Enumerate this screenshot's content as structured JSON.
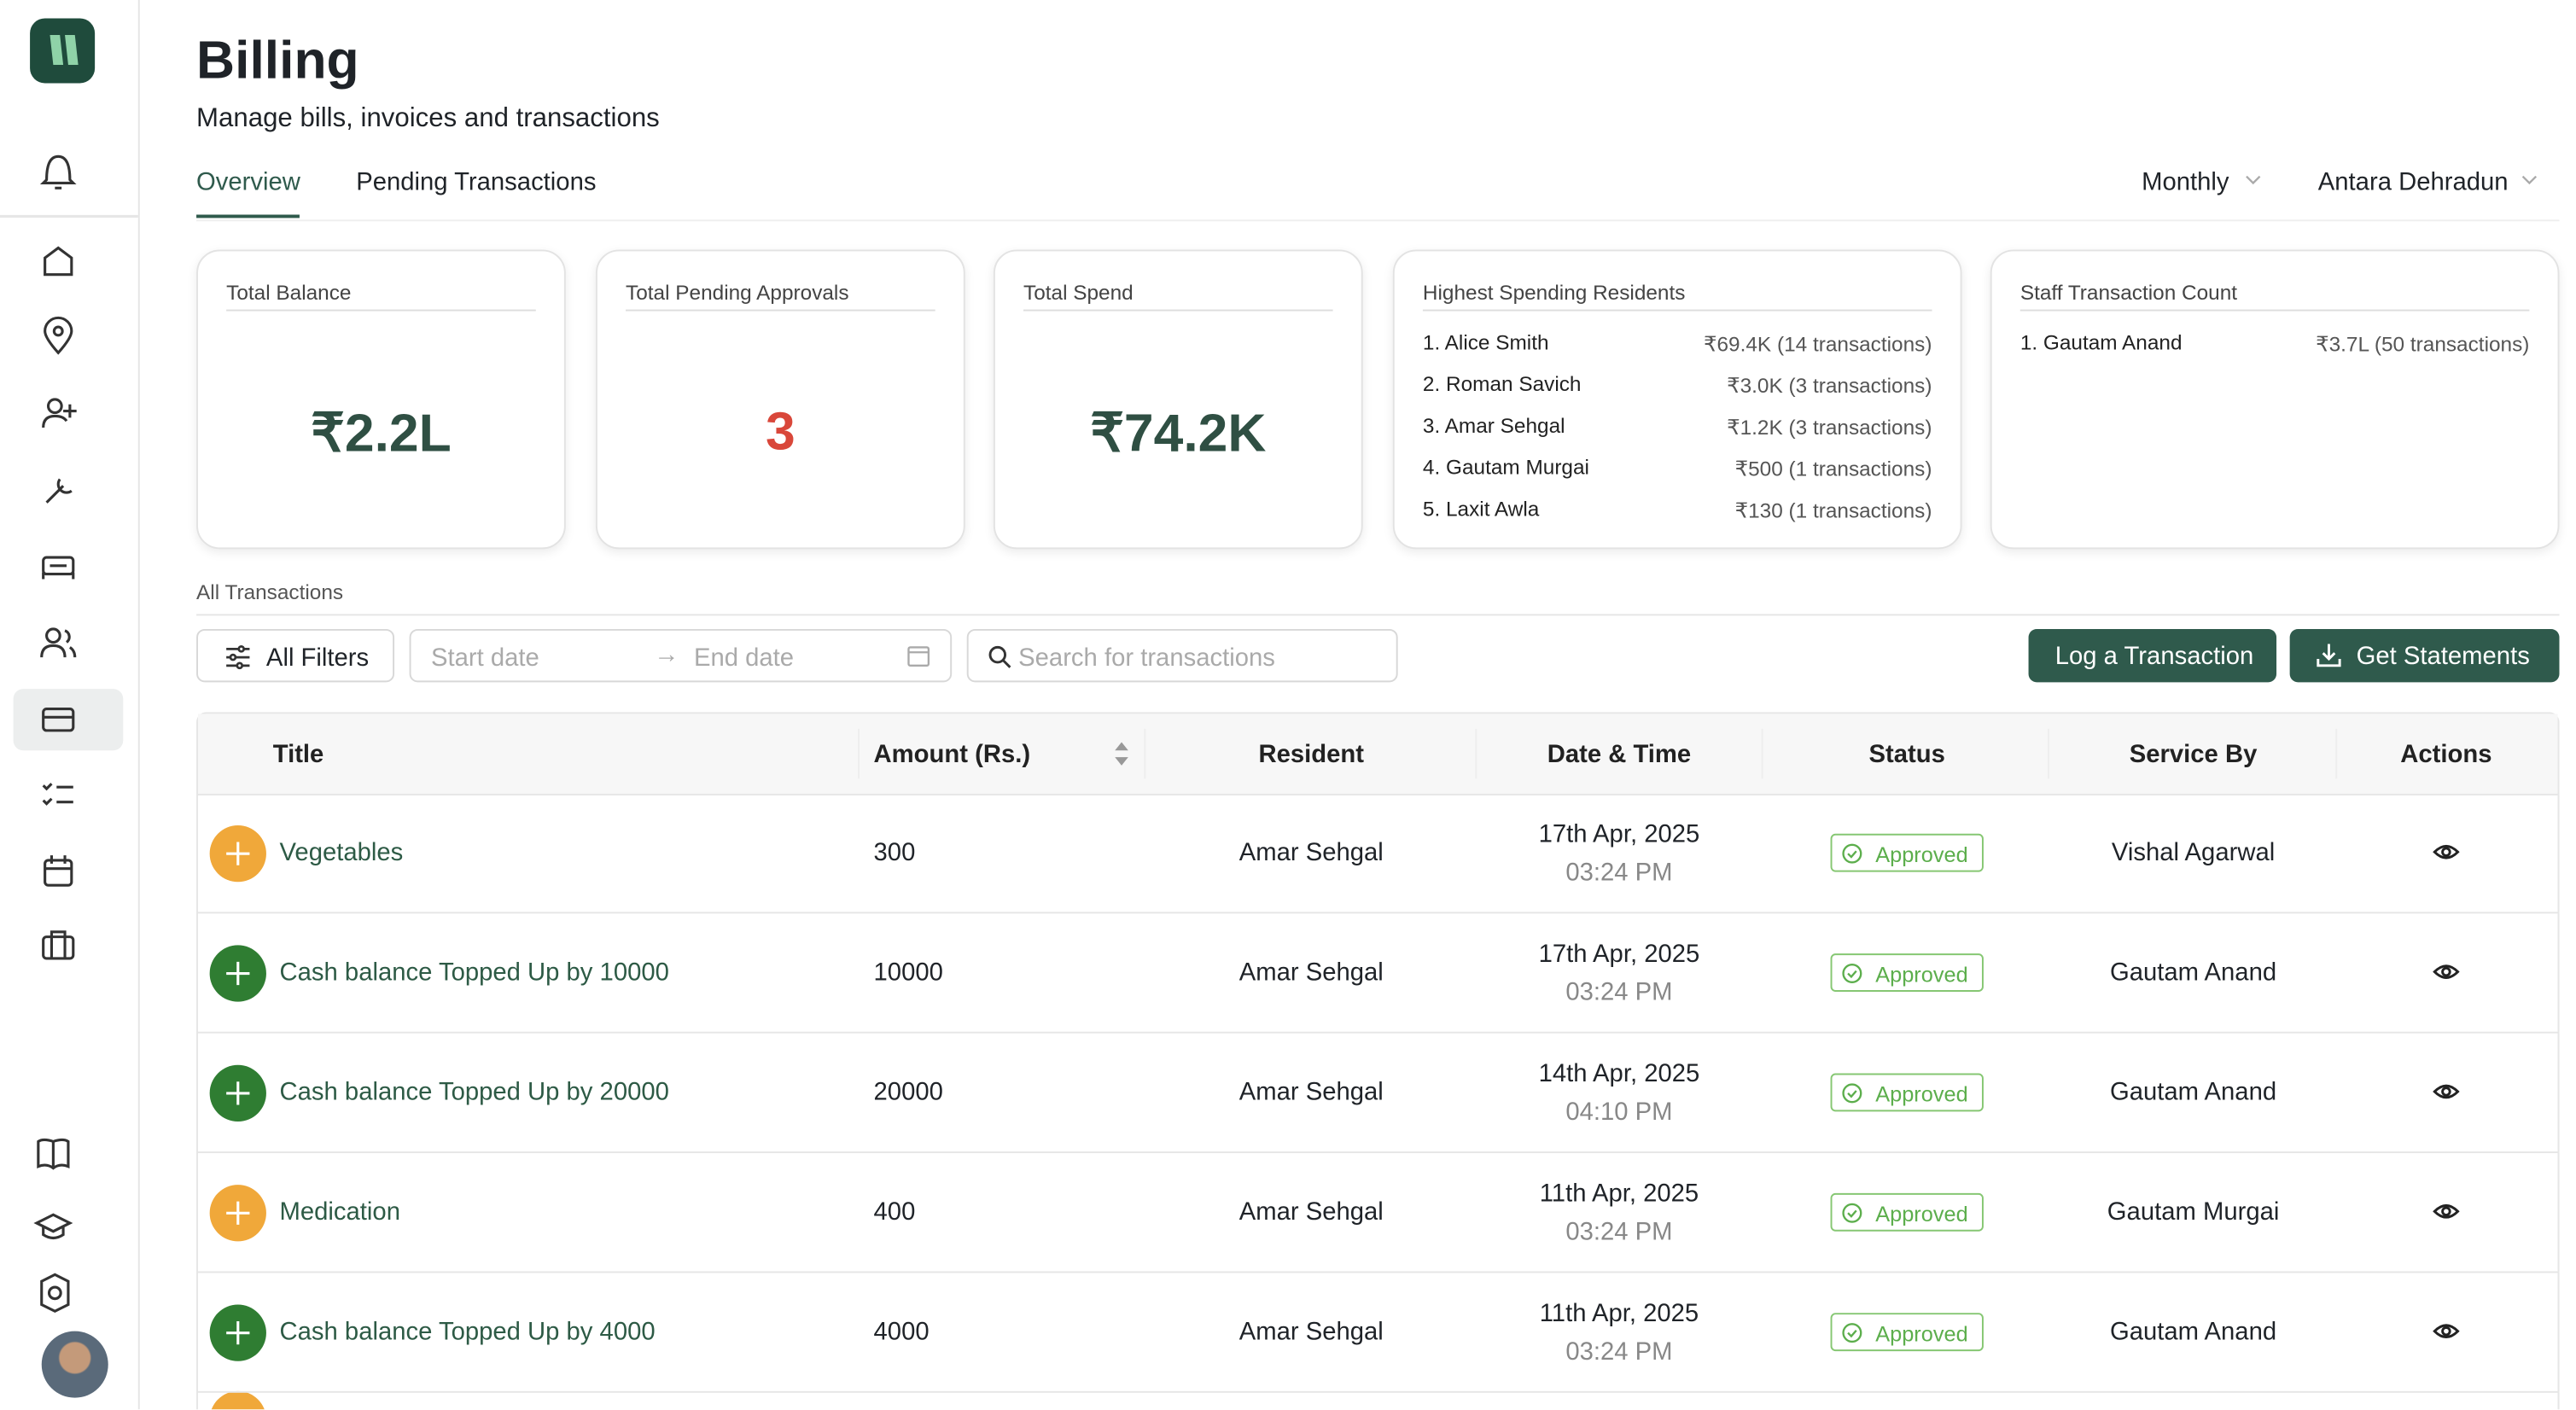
{
  "header": {
    "title": "Billing",
    "subtitle": "Manage bills, invoices and transactions"
  },
  "tabs": [
    "Overview",
    "Pending Transactions"
  ],
  "filters": {
    "period": "Monthly",
    "location": "Antara Dehradun"
  },
  "cards": [
    {
      "label": "Total Balance",
      "value": "₹2.2L",
      "color": "#2f4f43"
    },
    {
      "label": "Total Pending Approvals",
      "value": "3",
      "color": "#d9473a"
    },
    {
      "label": "Total Spend",
      "value": "₹74.2K",
      "color": "#2f4f43"
    }
  ],
  "highest_spending": {
    "label": "Highest Spending Residents",
    "rows": [
      [
        "1. Alice Smith",
        "₹69.4K (14 transactions)"
      ],
      [
        "2. Roman Savich",
        "₹3.0K (3 transactions)"
      ],
      [
        "3. Amar Sehgal",
        "₹1.2K (3 transactions)"
      ],
      [
        "4. Gautam Murgai",
        "₹500 (1 transactions)"
      ],
      [
        "5. Laxit Awla",
        "₹130 (1 transactions)"
      ]
    ]
  },
  "staff_count": {
    "label": "Staff Transaction Count",
    "rows": [
      [
        "1. Gautam Anand",
        "₹3.7L (50 transactions)"
      ]
    ]
  },
  "transactions": {
    "label": "All Transactions",
    "toolbar": {
      "filters": "All Filters",
      "start": "Start date",
      "end": "End date",
      "search": "Search for transactions",
      "log": "Log a Transaction",
      "statements": "Get Statements"
    },
    "columns": [
      "Title",
      "Amount (Rs.)",
      "Resident",
      "Date & Time",
      "Status",
      "Service By",
      "Actions"
    ],
    "rows": [
      {
        "title": "Vegetables",
        "amount": "300",
        "resident": "Amar Sehgal",
        "date": "17th Apr, 2025",
        "time": "03:24 PM",
        "status": "Approved",
        "service": "Vishal Agarwal",
        "icon_color": "#f0a83a"
      },
      {
        "title": "Cash balance Topped Up by 10000",
        "amount": "10000",
        "resident": "Amar Sehgal",
        "date": "17th Apr, 2025",
        "time": "03:24 PM",
        "status": "Approved",
        "service": "Gautam Anand",
        "icon_color": "#2f7d32"
      },
      {
        "title": "Cash balance Topped Up by 20000",
        "amount": "20000",
        "resident": "Amar Sehgal",
        "date": "14th Apr, 2025",
        "time": "04:10 PM",
        "status": "Approved",
        "service": "Gautam Anand",
        "icon_color": "#2f7d32"
      },
      {
        "title": "Medication",
        "amount": "400",
        "resident": "Amar Sehgal",
        "date": "11th Apr, 2025",
        "time": "03:24 PM",
        "status": "Approved",
        "service": "Gautam Murgai",
        "icon_color": "#f0a83a"
      },
      {
        "title": "Cash balance Topped Up by 4000",
        "amount": "4000",
        "resident": "Amar Sehgal",
        "date": "11th Apr, 2025",
        "time": "03:24 PM",
        "status": "Approved",
        "service": "Gautam Anand",
        "icon_color": "#2f7d32"
      }
    ]
  }
}
